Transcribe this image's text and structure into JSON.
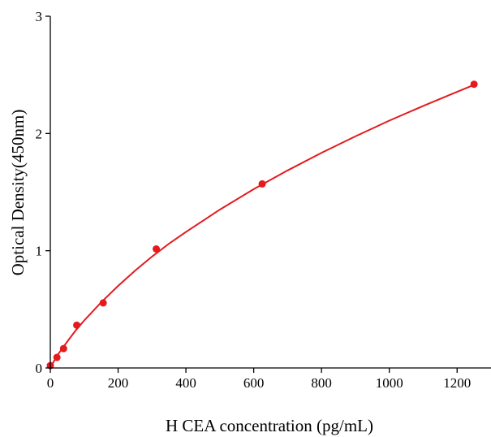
{
  "chart_data": {
    "type": "scatter",
    "title": "",
    "xlabel": "H CEA concentration (pg/mL)",
    "ylabel": "Optical Density(450nm)",
    "xlim": [
      0,
      1300
    ],
    "ylim": [
      0,
      3
    ],
    "xticks": [
      0,
      200,
      400,
      600,
      800,
      1000,
      1200
    ],
    "yticks": [
      0,
      1,
      2,
      3
    ],
    "grid": false,
    "legend": "none",
    "colors": {
      "data": "#e41a1c",
      "axis": "#000000"
    },
    "series": [
      {
        "points": [
          {
            "x": 0,
            "y": 0.02
          },
          {
            "x": 19.5,
            "y": 0.09
          },
          {
            "x": 39,
            "y": 0.165
          },
          {
            "x": 78,
            "y": 0.365
          },
          {
            "x": 156,
            "y": 0.555
          },
          {
            "x": 312.5,
            "y": 1.015
          },
          {
            "x": 625,
            "y": 1.57
          },
          {
            "x": 1250,
            "y": 2.42
          }
        ],
        "fit_curve": [
          {
            "x": 0,
            "y": 0.0
          },
          {
            "x": 10,
            "y": 0.055
          },
          {
            "x": 25,
            "y": 0.125
          },
          {
            "x": 50,
            "y": 0.225
          },
          {
            "x": 75,
            "y": 0.32
          },
          {
            "x": 100,
            "y": 0.405
          },
          {
            "x": 150,
            "y": 0.56
          },
          {
            "x": 200,
            "y": 0.7
          },
          {
            "x": 250,
            "y": 0.83
          },
          {
            "x": 300,
            "y": 0.95
          },
          {
            "x": 350,
            "y": 1.06
          },
          {
            "x": 400,
            "y": 1.16
          },
          {
            "x": 500,
            "y": 1.35
          },
          {
            "x": 600,
            "y": 1.525
          },
          {
            "x": 700,
            "y": 1.685
          },
          {
            "x": 800,
            "y": 1.835
          },
          {
            "x": 900,
            "y": 1.975
          },
          {
            "x": 1000,
            "y": 2.11
          },
          {
            "x": 1100,
            "y": 2.235
          },
          {
            "x": 1200,
            "y": 2.355
          },
          {
            "x": 1250,
            "y": 2.415
          }
        ]
      }
    ]
  }
}
